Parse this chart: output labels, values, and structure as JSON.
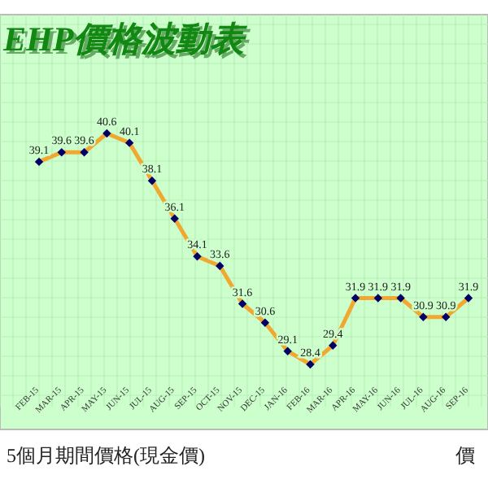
{
  "chart_data": {
    "type": "line",
    "title": "EHP價格波動表",
    "categories": [
      "FEB-15",
      "MAR-15",
      "APR-15",
      "MAY-15",
      "JUN-15",
      "JUL-15",
      "AUG-15",
      "SEP-15",
      "OCT-15",
      "NOV-15",
      "DEC-15",
      "JAN-16",
      "FEB-16",
      "MAR-16",
      "APR-16",
      "MAY-16",
      "JUN-16",
      "JUL-16",
      "AUG-16",
      "SEP-16"
    ],
    "series": [
      {
        "color": "#f0a830",
        "values": [
          39.1,
          39.6,
          39.6,
          40.6,
          40.1,
          38.1,
          36.1,
          34.1,
          33.6,
          31.6,
          30.6,
          29.1,
          28.4,
          29.4,
          31.9,
          31.9,
          31.9,
          30.9,
          30.9,
          31.9
        ]
      }
    ],
    "data_labels": true,
    "marker": "diamond",
    "line_style": "solid",
    "grid": true,
    "annotations": [
      "5個月期間價格(現金價)",
      "價"
    ]
  }
}
